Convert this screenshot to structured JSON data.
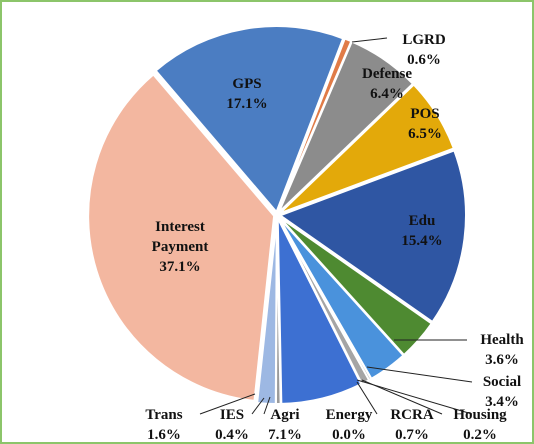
{
  "chart_data": {
    "type": "pie",
    "categories": [
      "LGRD",
      "Defense",
      "POS",
      "Edu",
      "Health",
      "Social",
      "Housing",
      "RCRA",
      "Energy",
      "Agri",
      "IES",
      "Trans",
      "Interest Payment",
      "GPS"
    ],
    "values": [
      0.6,
      6.4,
      6.5,
      15.4,
      3.6,
      3.4,
      0.2,
      0.7,
      0.0,
      7.1,
      0.4,
      1.6,
      37.1,
      17.1
    ],
    "value_labels": [
      "0.6%",
      "6.4%",
      "6.5%",
      "15.4%",
      "3.6%",
      "3.4%",
      "0.2%",
      "0.7%",
      "0.0%",
      "7.1%",
      "0.4%",
      "1.6%",
      "37.1%",
      "17.1%"
    ],
    "colors": [
      "#e07b47",
      "#8c8c8c",
      "#e3a90a",
      "#2f56a3",
      "#4e8a31",
      "#4a92dc",
      "#8a8a8a",
      "#a5a5a5",
      "#d5a21a",
      "#3d70d2",
      "#9a9a9a",
      "#9db8e3",
      "#f3b7a0",
      "#4b7dc2"
    ]
  }
}
